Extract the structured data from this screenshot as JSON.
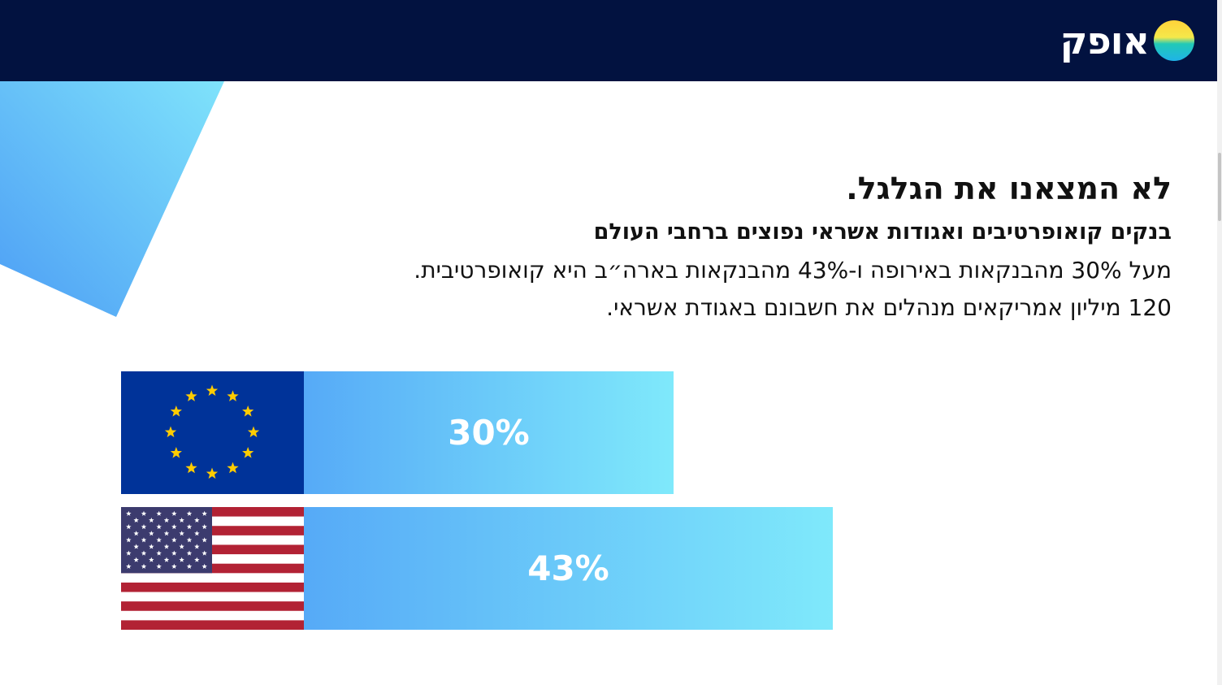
{
  "header": {
    "logo_text": "אופק",
    "bg_color": "#021240"
  },
  "content": {
    "headline": "לא המצאנו את הגלגל.",
    "subheadline": "בנקים קואופרטיבים ואגודות אשראי נפוצים ברחבי העולם",
    "line_1": "מעל 30% מהבנקאות באירופה ו-43% מהבנקאות בארה״ב היא קואופרטיבית.",
    "line_2": "120 מיליון אמריקאים מנהלים את חשבונם באגודת אשראי."
  },
  "stats": [
    {
      "icon": "eu-flag-icon",
      "label": "30%",
      "value_pct": 30
    },
    {
      "icon": "us-flag-icon",
      "label": "43%",
      "value_pct": 43
    }
  ],
  "colors": {
    "bar_start": "#56aaf7",
    "bar_end": "#7fe9fb",
    "eu_blue": "#003399",
    "eu_star": "#ffcc00",
    "us_red": "#b22234",
    "us_blue": "#3c3b6e"
  }
}
